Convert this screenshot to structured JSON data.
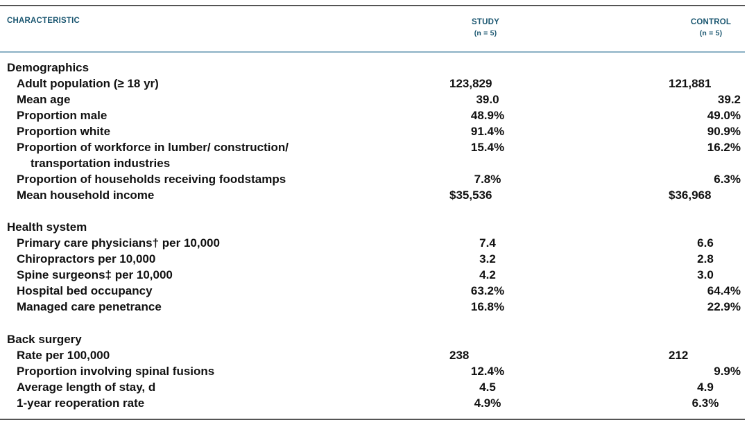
{
  "header": {
    "characteristic": "CHARACTERISTIC",
    "study": "STUDY",
    "study_n": "(n = 5)",
    "control": "CONTROL",
    "control_n": "(n = 5)"
  },
  "sections": [
    {
      "title": "Demographics",
      "rows": [
        {
          "label": "Adult population (≥ 18 yr)",
          "study": "123,829",
          "control": "121,881"
        },
        {
          "label": "Mean age",
          "study": "39.0",
          "control": "39.2"
        },
        {
          "label": "Proportion male",
          "study": "48.9%",
          "control": "49.0%"
        },
        {
          "label": "Proportion white",
          "study": "91.4%",
          "control": "90.9%"
        },
        {
          "label": "Proportion of workforce in lumber/ construction/",
          "label2": "transportation industries",
          "study": "15.4%",
          "control": "16.2%"
        },
        {
          "label": "Proportion of households receiving foodstamps",
          "study": "7.8%",
          "control": "6.3%"
        },
        {
          "label": "Mean household income",
          "study": "$35,536",
          "control": "$36,968"
        }
      ]
    },
    {
      "title": "Health system",
      "rows": [
        {
          "label": "Primary care physicians† per 10,000",
          "study": "7.4",
          "control": "6.6"
        },
        {
          "label": "Chiropractors per 10,000",
          "study": "3.2",
          "control": "2.8"
        },
        {
          "label": "Spine surgeons‡ per 10,000",
          "study": "4.2",
          "control": "3.0"
        },
        {
          "label": "Hospital bed occupancy",
          "study": "63.2%",
          "control": "64.4%"
        },
        {
          "label": "Managed care penetrance",
          "study": "16.8%",
          "control": "22.9%"
        }
      ]
    },
    {
      "title": "Back surgery",
      "rows": [
        {
          "label": "Rate per 100,000",
          "study": "238",
          "control": "212"
        },
        {
          "label": "Proportion involving spinal fusions",
          "study": "12.4%",
          "control": "9.9%"
        },
        {
          "label": "Average length of stay, d",
          "study": "4.5",
          "control": "4.9"
        },
        {
          "label": "1-year reoperation rate",
          "study": "4.9%",
          "control": "6.3%"
        }
      ]
    }
  ]
}
